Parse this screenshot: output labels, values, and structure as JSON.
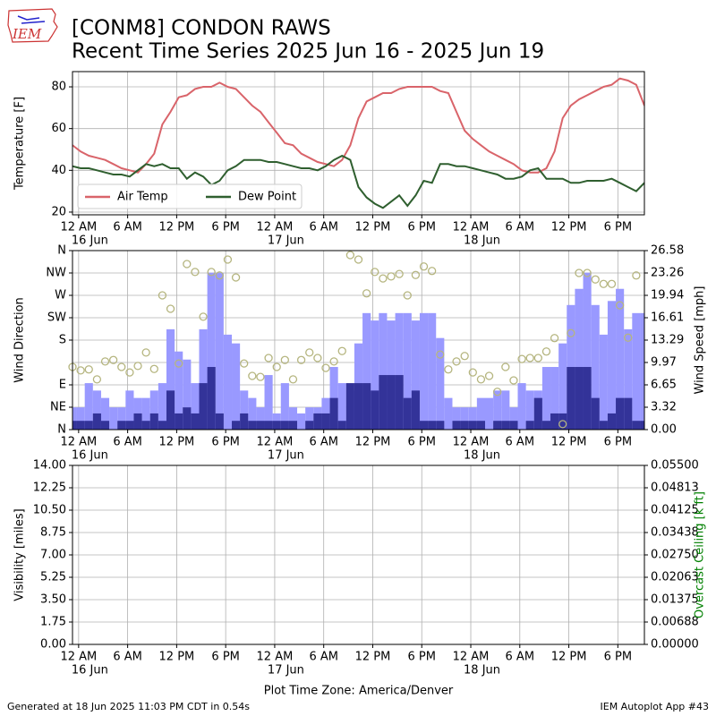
{
  "header": {
    "title": "[CONM8] CONDON RAWS",
    "subtitle": "Recent Time Series 2025 Jun 16 - 2025 Jun 19",
    "logo": "IEM"
  },
  "footer": {
    "generated": "Generated at 18 Jun 2025 11:03 PM CDT in 0.54s",
    "app": "IEM Autoplot App #43"
  },
  "chart_data": [
    {
      "type": "line",
      "ylabel": "Temperature [F]",
      "xlim": [
        "2025-06-15T23:15",
        "2025-06-18T21:15"
      ],
      "ylim": [
        18.7,
        87.3
      ],
      "yticks": [
        20,
        40,
        60,
        80
      ],
      "xticks": [
        {
          "value": "2025-06-16T00:00",
          "label": "12 AM",
          "date": "16 Jun"
        },
        {
          "value": "2025-06-16T06:00",
          "label": "6 AM"
        },
        {
          "value": "2025-06-16T12:00",
          "label": "12 PM"
        },
        {
          "value": "2025-06-16T18:00",
          "label": "6 PM"
        },
        {
          "value": "2025-06-17T00:00",
          "label": "12 AM",
          "date": "17 Jun"
        },
        {
          "value": "2025-06-17T06:00",
          "label": "6 AM"
        },
        {
          "value": "2025-06-17T12:00",
          "label": "12 PM"
        },
        {
          "value": "2025-06-17T18:00",
          "label": "6 PM"
        },
        {
          "value": "2025-06-18T00:00",
          "label": "12 AM",
          "date": "18 Jun"
        },
        {
          "value": "2025-06-18T06:00",
          "label": "6 AM"
        },
        {
          "value": "2025-06-18T12:00",
          "label": "12 PM"
        },
        {
          "value": "2025-06-18T18:00",
          "label": "6 PM"
        }
      ],
      "grid": "y",
      "legend": "lower left",
      "x": [
        "2025-06-15T23:15",
        "2025-06-16T00:15",
        "2025-06-16T01:15",
        "2025-06-16T02:15",
        "2025-06-16T03:15",
        "2025-06-16T04:15",
        "2025-06-16T05:15",
        "2025-06-16T06:15",
        "2025-06-16T07:15",
        "2025-06-16T08:15",
        "2025-06-16T09:15",
        "2025-06-16T10:15",
        "2025-06-16T11:15",
        "2025-06-16T12:15",
        "2025-06-16T13:15",
        "2025-06-16T14:15",
        "2025-06-16T15:15",
        "2025-06-16T16:15",
        "2025-06-16T17:15",
        "2025-06-16T18:15",
        "2025-06-16T19:15",
        "2025-06-16T20:15",
        "2025-06-16T21:15",
        "2025-06-16T22:15",
        "2025-06-16T23:15",
        "2025-06-17T00:15",
        "2025-06-17T01:15",
        "2025-06-17T02:15",
        "2025-06-17T03:15",
        "2025-06-17T04:15",
        "2025-06-17T05:15",
        "2025-06-17T06:15",
        "2025-06-17T07:15",
        "2025-06-17T08:15",
        "2025-06-17T09:15",
        "2025-06-17T10:15",
        "2025-06-17T11:15",
        "2025-06-17T12:15",
        "2025-06-17T13:15",
        "2025-06-17T14:15",
        "2025-06-17T15:15",
        "2025-06-17T16:15",
        "2025-06-17T17:15",
        "2025-06-17T18:15",
        "2025-06-17T19:15",
        "2025-06-17T20:15",
        "2025-06-17T21:15",
        "2025-06-17T22:15",
        "2025-06-17T23:15",
        "2025-06-18T00:15",
        "2025-06-18T01:15",
        "2025-06-18T02:15",
        "2025-06-18T03:15",
        "2025-06-18T04:15",
        "2025-06-18T05:15",
        "2025-06-18T06:15",
        "2025-06-18T07:15",
        "2025-06-18T08:15",
        "2025-06-18T09:15",
        "2025-06-18T10:15",
        "2025-06-18T11:15",
        "2025-06-18T12:15",
        "2025-06-18T13:15",
        "2025-06-18T14:15",
        "2025-06-18T15:15",
        "2025-06-18T16:15",
        "2025-06-18T17:15",
        "2025-06-18T18:15",
        "2025-06-18T19:15",
        "2025-06-18T20:15",
        "2025-06-18T21:15"
      ],
      "series": [
        {
          "name": "Air Temp",
          "kind": "line",
          "color": "#d9646a",
          "values": [
            52,
            49,
            47,
            46,
            45,
            43,
            41,
            40,
            39,
            43,
            48,
            62,
            68,
            75,
            76,
            79,
            80,
            80,
            82,
            80,
            79,
            75,
            71,
            68,
            63,
            58,
            53,
            52,
            48,
            46,
            44,
            43,
            42,
            45,
            52,
            65,
            73,
            75,
            77,
            77,
            79,
            80,
            80,
            80,
            80,
            78,
            77,
            68,
            59,
            55,
            52,
            49,
            47,
            45,
            43,
            40,
            39,
            39,
            41,
            49,
            65,
            71,
            74,
            76,
            78,
            80,
            81,
            84,
            83,
            81,
            71
          ]
        },
        {
          "name": "Dew Point",
          "kind": "line",
          "color": "#2f5f2f",
          "values": [
            42,
            41,
            41,
            40,
            39,
            38,
            38,
            37,
            40,
            43,
            42,
            43,
            41,
            41,
            36,
            39,
            37,
            33,
            35,
            40,
            42,
            45,
            45,
            45,
            44,
            44,
            43,
            42,
            41,
            41,
            40,
            42,
            45,
            47,
            45,
            32,
            27,
            24,
            22,
            25,
            28,
            23,
            28,
            35,
            34,
            43,
            43,
            42,
            42,
            41,
            40,
            39,
            38,
            36,
            36,
            37,
            40,
            41,
            36,
            36,
            36,
            34,
            34,
            35,
            35,
            35,
            36,
            34,
            32,
            30,
            34
          ]
        }
      ]
    },
    {
      "type": "combo",
      "ylabel": "Wind Direction",
      "y2label": "Wind Speed [mph]",
      "xlim": [
        "2025-06-15T23:15",
        "2025-06-18T21:15"
      ],
      "ylim": [
        0,
        360
      ],
      "yticks": [
        {
          "value": 0,
          "label": "N"
        },
        {
          "value": 45,
          "label": "NE"
        },
        {
          "value": 90,
          "label": "E"
        },
        {
          "value": 180,
          "label": "S"
        },
        {
          "value": 225,
          "label": "SW"
        },
        {
          "value": 270,
          "label": "W"
        },
        {
          "value": 315,
          "label": "NW"
        },
        {
          "value": 360,
          "label": "N"
        }
      ],
      "y2lim": [
        0,
        26.58
      ],
      "y2ticks": [
        {
          "value": 0,
          "label": "0.00"
        },
        {
          "value": 3.3225,
          "label": "3.32"
        },
        {
          "value": 6.645,
          "label": "6.65"
        },
        {
          "value": 9.9675,
          "label": "9.97"
        },
        {
          "value": 13.29,
          "label": "13.29"
        },
        {
          "value": 16.6125,
          "label": "16.61"
        },
        {
          "value": 19.935,
          "label": "19.94"
        },
        {
          "value": 23.2575,
          "label": "23.26"
        },
        {
          "value": 26.58,
          "label": "26.58"
        }
      ],
      "xticks": [
        {
          "value": "2025-06-16T00:00",
          "label": "12 AM",
          "date": "16 Jun"
        },
        {
          "value": "2025-06-16T06:00",
          "label": "6 AM"
        },
        {
          "value": "2025-06-16T12:00",
          "label": "12 PM"
        },
        {
          "value": "2025-06-16T18:00",
          "label": "6 PM"
        },
        {
          "value": "2025-06-17T00:00",
          "label": "12 AM",
          "date": "17 Jun"
        },
        {
          "value": "2025-06-17T06:00",
          "label": "6 AM"
        },
        {
          "value": "2025-06-17T12:00",
          "label": "12 PM"
        },
        {
          "value": "2025-06-17T18:00",
          "label": "6 PM"
        },
        {
          "value": "2025-06-18T00:00",
          "label": "12 AM",
          "date": "18 Jun"
        },
        {
          "value": "2025-06-18T06:00",
          "label": "6 AM"
        },
        {
          "value": "2025-06-18T12:00",
          "label": "12 PM"
        },
        {
          "value": "2025-06-18T18:00",
          "label": "6 PM"
        }
      ],
      "grid": "y2",
      "x": [
        "2025-06-15T23:15",
        "2025-06-16T00:15",
        "2025-06-16T01:15",
        "2025-06-16T02:15",
        "2025-06-16T03:15",
        "2025-06-16T04:15",
        "2025-06-16T05:15",
        "2025-06-16T06:15",
        "2025-06-16T07:15",
        "2025-06-16T08:15",
        "2025-06-16T09:15",
        "2025-06-16T10:15",
        "2025-06-16T11:15",
        "2025-06-16T12:15",
        "2025-06-16T13:15",
        "2025-06-16T14:15",
        "2025-06-16T15:15",
        "2025-06-16T16:15",
        "2025-06-16T17:15",
        "2025-06-16T18:15",
        "2025-06-16T19:15",
        "2025-06-16T20:15",
        "2025-06-16T21:15",
        "2025-06-16T22:15",
        "2025-06-16T23:15",
        "2025-06-17T00:15",
        "2025-06-17T01:15",
        "2025-06-17T02:15",
        "2025-06-17T03:15",
        "2025-06-17T04:15",
        "2025-06-17T05:15",
        "2025-06-17T06:15",
        "2025-06-17T07:15",
        "2025-06-17T08:15",
        "2025-06-17T09:15",
        "2025-06-17T10:15",
        "2025-06-17T11:15",
        "2025-06-17T12:15",
        "2025-06-17T13:15",
        "2025-06-17T14:15",
        "2025-06-17T15:15",
        "2025-06-17T16:15",
        "2025-06-17T17:15",
        "2025-06-17T18:15",
        "2025-06-17T19:15",
        "2025-06-17T20:15",
        "2025-06-17T21:15",
        "2025-06-17T22:15",
        "2025-06-17T23:15",
        "2025-06-18T00:15",
        "2025-06-18T01:15",
        "2025-06-18T02:15",
        "2025-06-18T03:15",
        "2025-06-18T04:15",
        "2025-06-18T05:15",
        "2025-06-18T06:15",
        "2025-06-18T07:15",
        "2025-06-18T08:15",
        "2025-06-18T09:15",
        "2025-06-18T10:15",
        "2025-06-18T11:15",
        "2025-06-18T12:15",
        "2025-06-18T13:15",
        "2025-06-18T14:15",
        "2025-06-18T15:15",
        "2025-06-18T16:15",
        "2025-06-18T17:15",
        "2025-06-18T18:15",
        "2025-06-18T19:15",
        "2025-06-18T20:15",
        "2025-06-18T21:15"
      ],
      "series": [
        {
          "kind": "bar",
          "axis": "y2",
          "color": "#9999ff",
          "values": [
            3.3,
            3.3,
            6.9,
            5.8,
            4.7,
            3.3,
            3.3,
            5.8,
            4.7,
            4.7,
            5.8,
            6.9,
            14.9,
            11.6,
            10.4,
            6.9,
            14.9,
            23.3,
            23.3,
            14.1,
            12.8,
            5.8,
            4.7,
            3.3,
            8.1,
            2.4,
            6.9,
            3.3,
            2.4,
            3.3,
            3.3,
            4.7,
            9.3,
            6.9,
            5.8,
            12.8,
            17.3,
            16.2,
            17.3,
            16.2,
            17.3,
            17.3,
            16.2,
            17.3,
            17.3,
            13.6,
            4.7,
            3.3,
            3.3,
            3.3,
            4.7,
            4.7,
            5.8,
            5.8,
            3.3,
            6.9,
            5.8,
            5.8,
            9.3,
            9.3,
            12.8,
            18.5,
            20.9,
            23.3,
            18.5,
            14.1,
            19.1,
            20.9,
            14.9,
            17.3,
            17.3
          ]
        },
        {
          "kind": "bar",
          "axis": "y2",
          "color": "#333399",
          "values": [
            1.3,
            1.3,
            1.3,
            2.4,
            1.3,
            0,
            1.3,
            1.3,
            2.4,
            1.3,
            2.4,
            1.3,
            5.8,
            2.4,
            3.3,
            2.4,
            6.9,
            9.3,
            2.4,
            0,
            1.3,
            2.4,
            1.3,
            1.3,
            1.3,
            1.3,
            1.3,
            1.3,
            0,
            1.3,
            2.4,
            2.4,
            4.7,
            1.3,
            6.9,
            6.9,
            6.9,
            5.8,
            8.1,
            8.1,
            8.1,
            4.7,
            5.8,
            1.3,
            1.3,
            1.3,
            0,
            1.3,
            1.3,
            1.3,
            1.3,
            0,
            1.3,
            1.3,
            1.3,
            0,
            1.3,
            4.7,
            1.3,
            2.4,
            2.4,
            9.3,
            9.3,
            9.3,
            4.7,
            1.3,
            2.4,
            4.7,
            4.7,
            1.3,
            1.3
          ]
        },
        {
          "kind": "scatter",
          "axis": "y",
          "color": "#b5b57f",
          "values": [
            126,
            119,
            121,
            101,
            137,
            140,
            126,
            115,
            128,
            155,
            122,
            270,
            243,
            133,
            333,
            317,
            227,
            317,
            310,
            342,
            306,
            133,
            108,
            106,
            144,
            126,
            140,
            101,
            140,
            155,
            144,
            124,
            137,
            158,
            351,
            342,
            274,
            317,
            304,
            308,
            313,
            270,
            311,
            328,
            319,
            151,
            121,
            137,
            148,
            115,
            101,
            108,
            76,
            126,
            99,
            142,
            144,
            144,
            157,
            184,
            11,
            194,
            315,
            315,
            302,
            293,
            293,
            250,
            185,
            310,
            null
          ]
        }
      ]
    },
    {
      "type": "line",
      "ylabel": "Visibility [miles]",
      "y2label": "Overcast Ceiling [k ft]",
      "y2label_color": "#008000",
      "xlabel": "Plot Time Zone: America/Denver",
      "xlim": [
        "2025-06-15T23:15",
        "2025-06-18T21:15"
      ],
      "ylim": [
        0,
        14
      ],
      "yticks": [
        {
          "value": 0,
          "label": "0.00"
        },
        {
          "value": 1.75,
          "label": "1.75"
        },
        {
          "value": 3.5,
          "label": "3.50"
        },
        {
          "value": 5.25,
          "label": "5.25"
        },
        {
          "value": 7,
          "label": "7.00"
        },
        {
          "value": 8.75,
          "label": "8.75"
        },
        {
          "value": 10.5,
          "label": "10.50"
        },
        {
          "value": 12.25,
          "label": "12.25"
        },
        {
          "value": 14,
          "label": "14.00"
        }
      ],
      "y2lim": [
        0,
        0.055
      ],
      "y2ticks": [
        {
          "value": 0,
          "label": "0.00000"
        },
        {
          "value": 0.006875,
          "label": "0.00688"
        },
        {
          "value": 0.01375,
          "label": "0.01375"
        },
        {
          "value": 0.020625,
          "label": "0.02063"
        },
        {
          "value": 0.0275,
          "label": "0.02750"
        },
        {
          "value": 0.034375,
          "label": "0.03438"
        },
        {
          "value": 0.04125,
          "label": "0.04125"
        },
        {
          "value": 0.048125,
          "label": "0.04813"
        },
        {
          "value": 0.055,
          "label": "0.05500"
        }
      ],
      "xticks": [
        {
          "value": "2025-06-16T00:00",
          "label": "12 AM",
          "date": "16 Jun"
        },
        {
          "value": "2025-06-16T06:00",
          "label": "6 AM"
        },
        {
          "value": "2025-06-16T12:00",
          "label": "12 PM"
        },
        {
          "value": "2025-06-16T18:00",
          "label": "6 PM"
        },
        {
          "value": "2025-06-17T00:00",
          "label": "12 AM",
          "date": "17 Jun"
        },
        {
          "value": "2025-06-17T06:00",
          "label": "6 AM"
        },
        {
          "value": "2025-06-17T12:00",
          "label": "12 PM"
        },
        {
          "value": "2025-06-17T18:00",
          "label": "6 PM"
        },
        {
          "value": "2025-06-18T00:00",
          "label": "12 AM",
          "date": "18 Jun"
        },
        {
          "value": "2025-06-18T06:00",
          "label": "6 AM"
        },
        {
          "value": "2025-06-18T12:00",
          "label": "12 PM"
        },
        {
          "value": "2025-06-18T18:00",
          "label": "6 PM"
        }
      ],
      "grid": "y"
    }
  ]
}
